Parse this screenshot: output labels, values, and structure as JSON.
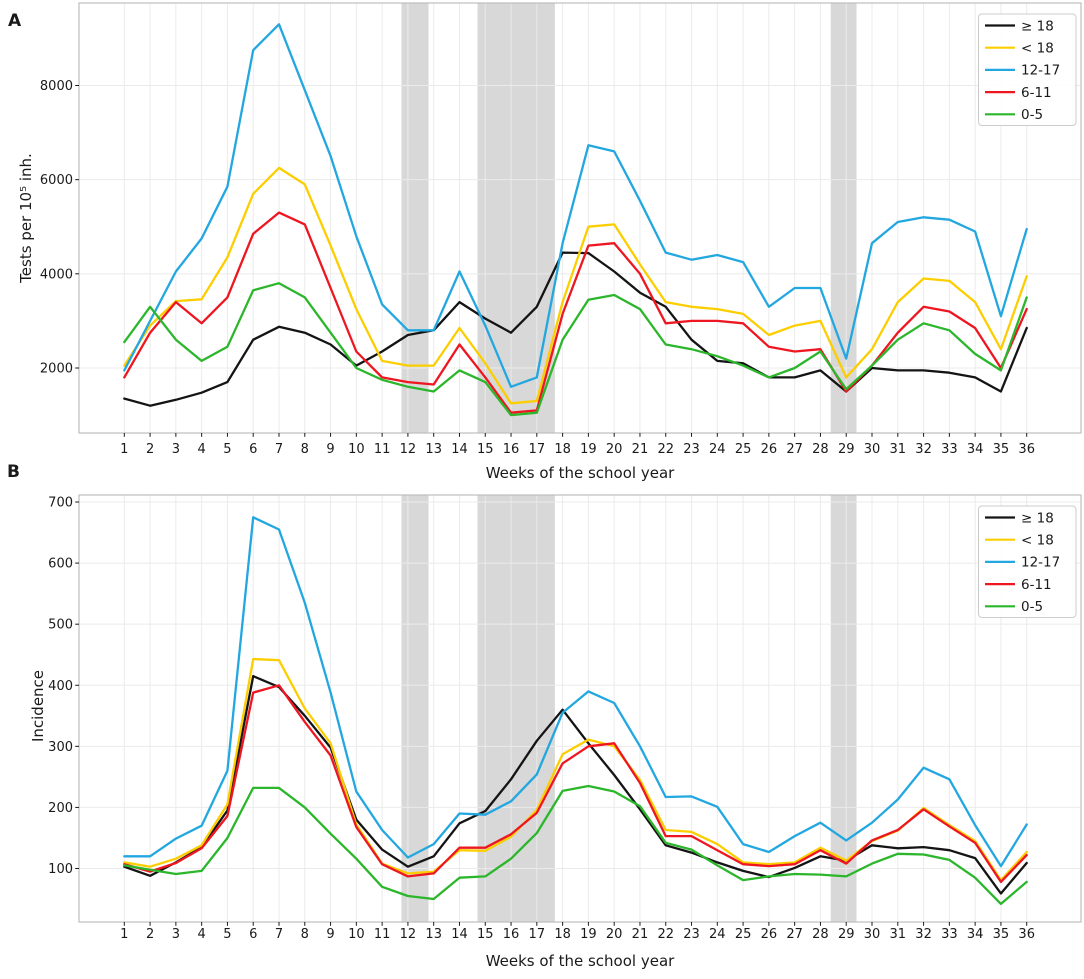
{
  "colors": {
    "band": "#D8D8D8",
    "grid": "#EBEBEB",
    "spine": "#BFBFBF",
    "text": "#1A1A1A",
    "legend_border": "#CCCCCC",
    "series_ge18": "#141414",
    "series_lt18": "#FCCE00",
    "series_12_17": "#22A7E0",
    "series_6_11": "#EE1620",
    "series_0_5": "#2BB62B"
  },
  "chart_data": [
    {
      "panel_label": "A",
      "type": "line",
      "title": "",
      "xlabel": "Weeks of the school year",
      "ylabel": "Tests per 10⁵ inh.",
      "grid": true,
      "legend_position": "upper right",
      "xlim": [
        -0.75,
        38.1
      ],
      "ylim": [
        620,
        9750
      ],
      "xticks": [
        1,
        2,
        3,
        4,
        5,
        6,
        7,
        8,
        9,
        10,
        11,
        12,
        13,
        14,
        15,
        16,
        17,
        18,
        19,
        20,
        21,
        22,
        23,
        24,
        25,
        26,
        27,
        28,
        29,
        30,
        31,
        32,
        33,
        34,
        35,
        36
      ],
      "yticks": [
        2000,
        4000,
        6000,
        8000
      ],
      "shaded_band_weeks": [
        [
          11.75,
          12.8
        ],
        [
          14.7,
          17.7
        ],
        [
          28.4,
          29.4
        ]
      ],
      "x": [
        1,
        2,
        3,
        4,
        5,
        6,
        7,
        8,
        9,
        10,
        11,
        12,
        13,
        14,
        15,
        16,
        17,
        18,
        19,
        20,
        21,
        22,
        23,
        24,
        25,
        26,
        27,
        28,
        29,
        30,
        31,
        32,
        33,
        34,
        35,
        36
      ],
      "series": [
        {
          "name": "≥ 18",
          "color": "#141414",
          "values": [
            1350,
            1200,
            1325,
            1475,
            1700,
            2600,
            2875,
            2750,
            2500,
            2050,
            2350,
            2700,
            2800,
            3400,
            3050,
            2750,
            3300,
            4450,
            4440,
            4050,
            3600,
            3300,
            2600,
            2150,
            2100,
            1800,
            1800,
            1950,
            1500,
            2000,
            1950,
            1950,
            1900,
            1800,
            1500,
            2850
          ]
        },
        {
          "name": "< 18",
          "color": "#FCCE00",
          "values": [
            2050,
            2900,
            3420,
            3460,
            4350,
            5700,
            6250,
            5900,
            4600,
            3250,
            2150,
            2050,
            2050,
            2850,
            2100,
            1250,
            1300,
            3400,
            5000,
            5050,
            4200,
            3400,
            3300,
            3250,
            3150,
            2700,
            2900,
            3000,
            1800,
            2400,
            3400,
            3900,
            3850,
            3400,
            2400,
            3950
          ]
        },
        {
          "name": "12-17",
          "color": "#22A7E0",
          "values": [
            1950,
            3000,
            4050,
            4750,
            5850,
            8750,
            9300,
            7900,
            6500,
            4800,
            3350,
            2800,
            2800,
            4050,
            2900,
            1600,
            1800,
            4650,
            6730,
            6600,
            5550,
            4450,
            4300,
            4400,
            4250,
            3300,
            3700,
            3700,
            2200,
            4650,
            5100,
            5200,
            5150,
            4900,
            3100,
            4950
          ]
        },
        {
          "name": "6-11",
          "color": "#EE1620",
          "values": [
            1800,
            2750,
            3400,
            2950,
            3500,
            4850,
            5300,
            5050,
            3700,
            2350,
            1800,
            1700,
            1650,
            2500,
            1800,
            1050,
            1100,
            3150,
            4600,
            4650,
            4000,
            2950,
            3000,
            3000,
            2950,
            2450,
            2350,
            2400,
            1500,
            2050,
            2750,
            3300,
            3200,
            2850,
            2000,
            3250
          ]
        },
        {
          "name": "0-5",
          "color": "#2BB62B",
          "values": [
            2550,
            3300,
            2600,
            2150,
            2450,
            3650,
            3800,
            3500,
            2750,
            2000,
            1750,
            1600,
            1500,
            1950,
            1700,
            1000,
            1050,
            2600,
            3450,
            3550,
            3250,
            2500,
            2400,
            2250,
            2050,
            1800,
            2000,
            2350,
            1550,
            2050,
            2600,
            2950,
            2800,
            2300,
            1950,
            3500
          ]
        }
      ]
    },
    {
      "panel_label": "B",
      "type": "line",
      "title": "",
      "xlabel": "Weeks of the school year",
      "ylabel": "Incidence",
      "grid": true,
      "legend_position": "upper right",
      "xlim": [
        -0.75,
        38.1
      ],
      "ylim": [
        12,
        711
      ],
      "xticks": [
        1,
        2,
        3,
        4,
        5,
        6,
        7,
        8,
        9,
        10,
        11,
        12,
        13,
        14,
        15,
        16,
        17,
        18,
        19,
        20,
        21,
        22,
        23,
        24,
        25,
        26,
        27,
        28,
        29,
        30,
        31,
        32,
        33,
        34,
        35,
        36
      ],
      "yticks": [
        100,
        200,
        300,
        400,
        500,
        600,
        700
      ],
      "shaded_band_weeks": [
        [
          11.75,
          12.8
        ],
        [
          14.7,
          17.7
        ],
        [
          28.4,
          29.4
        ]
      ],
      "x": [
        1,
        2,
        3,
        4,
        5,
        6,
        7,
        8,
        9,
        10,
        11,
        12,
        13,
        14,
        15,
        16,
        17,
        18,
        19,
        20,
        21,
        22,
        23,
        24,
        25,
        26,
        27,
        28,
        29,
        30,
        31,
        32,
        33,
        34,
        35,
        36
      ],
      "series": [
        {
          "name": "≥ 18",
          "color": "#141414",
          "values": [
            103,
            88,
            110,
            135,
            195,
            415,
            397,
            350,
            298,
            180,
            131,
            103,
            120,
            174,
            194,
            246,
            309,
            360,
            305,
            253,
            197,
            138,
            126,
            110,
            96,
            86,
            101,
            120,
            113,
            138,
            133,
            135,
            130,
            117,
            59,
            109
          ]
        },
        {
          "name": "< 18",
          "color": "#FCCE00",
          "values": [
            110,
            103,
            116,
            138,
            205,
            443,
            441,
            362,
            305,
            172,
            108,
            92,
            95,
            130,
            129,
            152,
            196,
            287,
            311,
            300,
            245,
            163,
            160,
            140,
            110,
            107,
            110,
            134,
            113,
            145,
            162,
            199,
            171,
            145,
            81,
            127
          ]
        },
        {
          "name": "12-17",
          "color": "#22A7E0",
          "values": [
            120,
            120,
            149,
            170,
            260,
            675,
            655,
            535,
            388,
            226,
            163,
            118,
            140,
            190,
            188,
            210,
            254,
            355,
            390,
            371,
            300,
            217,
            218,
            201,
            140,
            127,
            153,
            175,
            146,
            175,
            213,
            265,
            246,
            171,
            104,
            172
          ]
        },
        {
          "name": "6-11",
          "color": "#EE1620",
          "values": [
            107,
            95,
            109,
            133,
            186,
            388,
            400,
            340,
            285,
            168,
            107,
            87,
            92,
            134,
            134,
            156,
            191,
            272,
            300,
            305,
            240,
            153,
            153,
            130,
            107,
            104,
            107,
            130,
            108,
            146,
            163,
            197,
            169,
            142,
            78,
            122
          ]
        },
        {
          "name": "0-5",
          "color": "#2BB62B",
          "values": [
            105,
            98,
            91,
            96,
            150,
            232,
            232,
            200,
            157,
            116,
            70,
            55,
            50,
            85,
            87,
            116,
            158,
            227,
            235,
            226,
            202,
            142,
            131,
            105,
            81,
            87,
            91,
            90,
            87,
            108,
            124,
            123,
            114,
            85,
            42,
            78
          ]
        }
      ]
    }
  ]
}
